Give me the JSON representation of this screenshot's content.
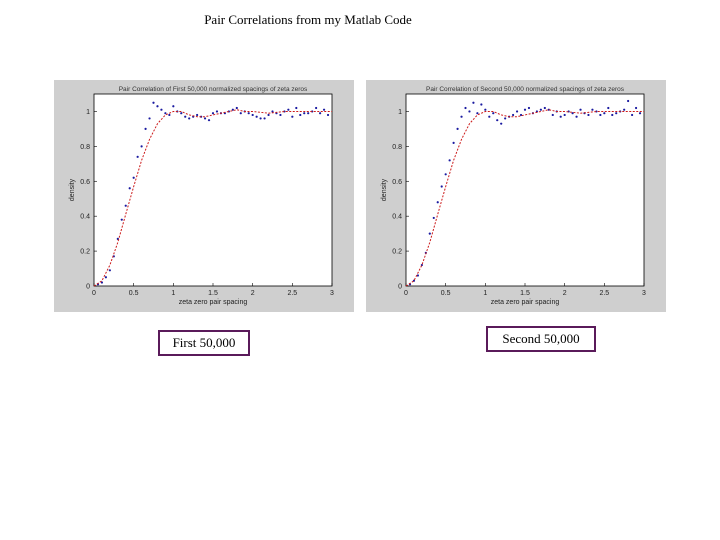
{
  "slide": {
    "title": "Pair Correlations from my Matlab Code",
    "captions": [
      "First 50,000",
      "Second 50,000"
    ]
  },
  "colors": {
    "points": "#1a1aa0",
    "fit": "#cc1a1a",
    "panel": "#cfcfcf"
  },
  "chart_data": [
    {
      "type": "scatter",
      "title": "Pair Correlation of First 50,000 normalized spacings of zeta zeros",
      "xlabel": "zeta zero pair spacing",
      "ylabel": "density",
      "xlim": [
        0,
        3
      ],
      "ylim": [
        0,
        1.1
      ],
      "xticks": [
        "0",
        "0.5",
        "1",
        "1.5",
        "2",
        "2.5",
        "3"
      ],
      "yticks": [
        "0",
        "0.2",
        "0.4",
        "0.6",
        "0.8",
        "1"
      ],
      "grid": false,
      "series": [
        {
          "kind": "points",
          "x": [
            0.05,
            0.1,
            0.15,
            0.2,
            0.25,
            0.3,
            0.35,
            0.4,
            0.45,
            0.5,
            0.55,
            0.6,
            0.65,
            0.7,
            0.75,
            0.8,
            0.85,
            0.9,
            0.95,
            1.0,
            1.05,
            1.1,
            1.15,
            1.2,
            1.25,
            1.3,
            1.35,
            1.4,
            1.45,
            1.5,
            1.55,
            1.6,
            1.65,
            1.7,
            1.75,
            1.8,
            1.85,
            1.9,
            1.95,
            2.0,
            2.05,
            2.1,
            2.15,
            2.2,
            2.25,
            2.3,
            2.35,
            2.4,
            2.45,
            2.5,
            2.55,
            2.6,
            2.65,
            2.7,
            2.75,
            2.8,
            2.85,
            2.9,
            2.95
          ],
          "y": [
            0.01,
            0.02,
            0.05,
            0.09,
            0.17,
            0.27,
            0.38,
            0.46,
            0.56,
            0.62,
            0.74,
            0.8,
            0.9,
            0.96,
            1.05,
            1.03,
            1.01,
            0.99,
            0.98,
            1.03,
            1.0,
            0.99,
            0.97,
            0.96,
            0.97,
            0.98,
            0.97,
            0.96,
            0.95,
            0.99,
            1.0,
            0.99,
            0.99,
            1.0,
            1.01,
            1.02,
            0.99,
            1.0,
            0.99,
            0.98,
            0.97,
            0.96,
            0.96,
            0.98,
            1.0,
            0.99,
            0.98,
            1.0,
            1.01,
            0.97,
            1.02,
            0.98,
            0.99,
            0.99,
            1.0,
            1.02,
            0.99,
            1.01,
            0.98
          ]
        },
        {
          "kind": "fit",
          "x": [
            0,
            0.1,
            0.2,
            0.3,
            0.4,
            0.5,
            0.6,
            0.7,
            0.8,
            0.9,
            1.0,
            1.1,
            1.2,
            1.3,
            1.4,
            1.5,
            1.6,
            1.7,
            1.8,
            1.9,
            2.0,
            2.2,
            2.4,
            2.6,
            2.8,
            3.0
          ],
          "y": [
            0,
            0.03,
            0.12,
            0.25,
            0.41,
            0.57,
            0.72,
            0.84,
            0.93,
            0.98,
            1.0,
            1.0,
            0.98,
            0.97,
            0.97,
            0.98,
            0.99,
            1.0,
            1.01,
            1.0,
            1.0,
            0.99,
            1.0,
            1.0,
            1.0,
            1.0
          ]
        }
      ]
    },
    {
      "type": "scatter",
      "title": "Pair Correlation of Second 50,000 normalized spacings of zeta zeros",
      "xlabel": "zeta zero pair spacing",
      "ylabel": "density",
      "xlim": [
        0,
        3
      ],
      "ylim": [
        0,
        1.1
      ],
      "xticks": [
        "0",
        "0.5",
        "1",
        "1.5",
        "2",
        "2.5",
        "3"
      ],
      "yticks": [
        "0",
        "0.2",
        "0.4",
        "0.6",
        "0.8",
        "1"
      ],
      "grid": false,
      "series": [
        {
          "kind": "points",
          "x": [
            0.05,
            0.1,
            0.15,
            0.2,
            0.25,
            0.3,
            0.35,
            0.4,
            0.45,
            0.5,
            0.55,
            0.6,
            0.65,
            0.7,
            0.75,
            0.8,
            0.85,
            0.9,
            0.95,
            1.0,
            1.05,
            1.1,
            1.15,
            1.2,
            1.25,
            1.3,
            1.35,
            1.4,
            1.45,
            1.5,
            1.55,
            1.6,
            1.65,
            1.7,
            1.75,
            1.8,
            1.85,
            1.9,
            1.95,
            2.0,
            2.05,
            2.1,
            2.15,
            2.2,
            2.25,
            2.3,
            2.35,
            2.4,
            2.45,
            2.5,
            2.55,
            2.6,
            2.65,
            2.7,
            2.75,
            2.8,
            2.85,
            2.9,
            2.95
          ],
          "y": [
            0.01,
            0.03,
            0.06,
            0.12,
            0.19,
            0.3,
            0.39,
            0.48,
            0.57,
            0.64,
            0.72,
            0.82,
            0.9,
            0.97,
            1.02,
            1.0,
            1.05,
            0.99,
            1.04,
            1.01,
            0.97,
            0.99,
            0.95,
            0.93,
            0.96,
            0.97,
            0.98,
            1.0,
            0.98,
            1.01,
            1.02,
            0.99,
            1.0,
            1.01,
            1.02,
            1.01,
            0.98,
            1.0,
            0.97,
            0.98,
            1.0,
            0.99,
            0.97,
            1.01,
            0.99,
            0.98,
            1.01,
            1.0,
            0.98,
            0.99,
            1.02,
            0.98,
            0.99,
            1.0,
            1.01,
            1.06,
            0.98,
            1.02,
            0.99
          ]
        },
        {
          "kind": "fit",
          "x": [
            0,
            0.1,
            0.2,
            0.3,
            0.4,
            0.5,
            0.6,
            0.7,
            0.8,
            0.9,
            1.0,
            1.1,
            1.2,
            1.3,
            1.4,
            1.5,
            1.6,
            1.7,
            1.8,
            1.9,
            2.0,
            2.2,
            2.4,
            2.6,
            2.8,
            3.0
          ],
          "y": [
            0,
            0.03,
            0.12,
            0.25,
            0.41,
            0.57,
            0.72,
            0.84,
            0.93,
            0.98,
            1.0,
            1.0,
            0.98,
            0.97,
            0.97,
            0.98,
            0.99,
            1.0,
            1.01,
            1.0,
            1.0,
            0.99,
            1.0,
            1.0,
            1.0,
            1.0
          ]
        }
      ]
    }
  ]
}
